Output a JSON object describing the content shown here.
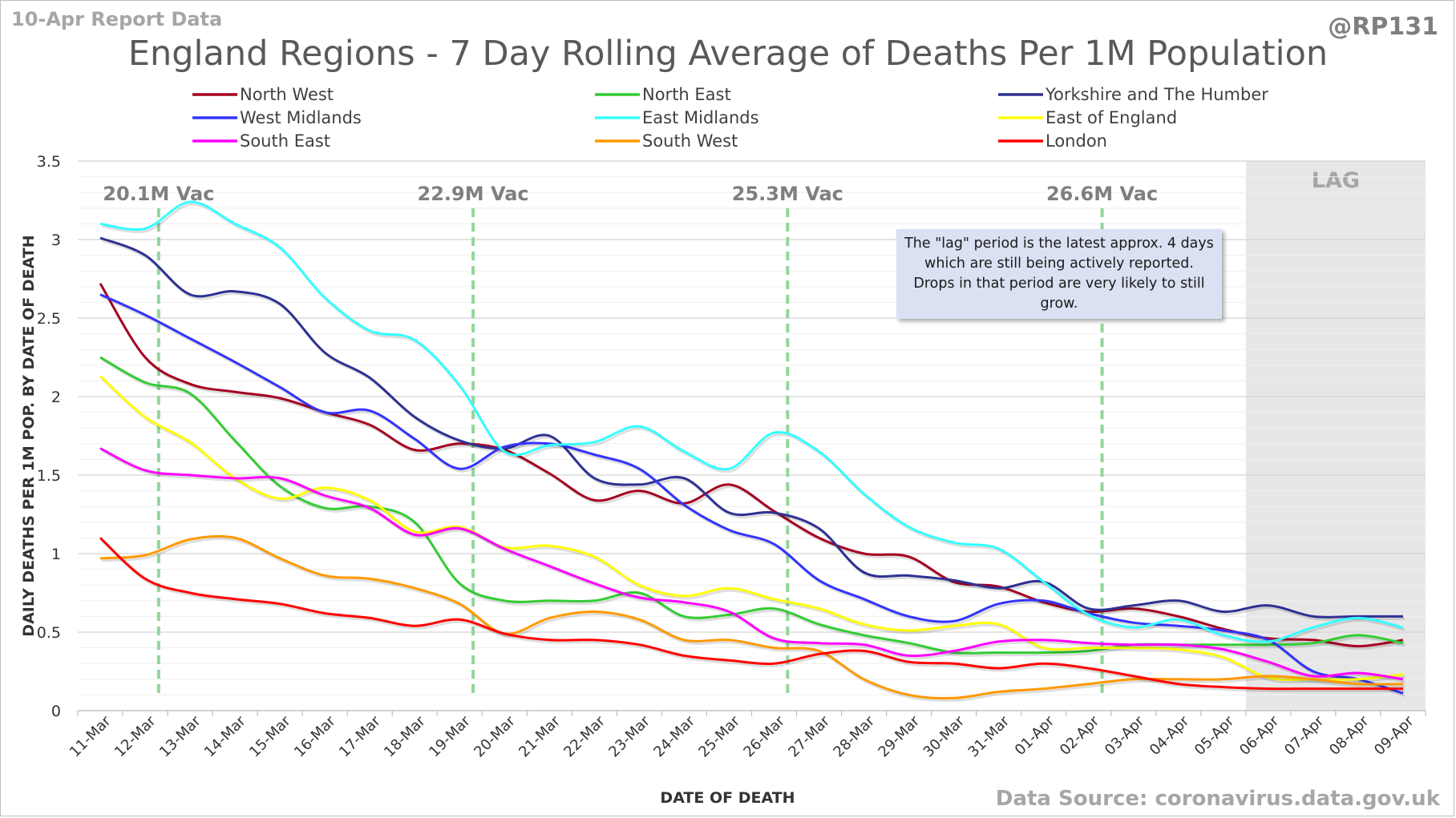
{
  "header": {
    "report_label": "10-Apr Report Data",
    "handle": "@RP131",
    "title": "England Regions - 7 Day Rolling Average of Deaths Per 1M Population",
    "source": "Data Source: coronavirus.data.gov.uk",
    "note": "The \"lag\" period is the latest approx. 4 days which are still being actively reported. Drops in that period are very likely to still grow."
  },
  "chart_data": {
    "type": "line",
    "title": "England Regions - 7 Day Rolling Average of Deaths Per 1M Population",
    "xlabel": "DATE OF DEATH",
    "ylabel": "DAILY DEATHS PER 1M POP. BY DATE OF DEATH",
    "ylim": [
      0,
      3.5
    ],
    "yticks": [
      "0",
      "0.5",
      "1",
      "1.5",
      "2",
      "2.5",
      "3",
      "3.5"
    ],
    "grid": true,
    "legend_position": "top",
    "categories": [
      "11-Mar",
      "12-Mar",
      "13-Mar",
      "14-Mar",
      "15-Mar",
      "16-Mar",
      "17-Mar",
      "18-Mar",
      "19-Mar",
      "20-Mar",
      "21-Mar",
      "22-Mar",
      "23-Mar",
      "24-Mar",
      "25-Mar",
      "26-Mar",
      "27-Mar",
      "28-Mar",
      "29-Mar",
      "30-Mar",
      "31-Mar",
      "01-Apr",
      "02-Apr",
      "03-Apr",
      "04-Apr",
      "05-Apr",
      "06-Apr",
      "07-Apr",
      "08-Apr",
      "09-Apr"
    ],
    "lag": {
      "label": "LAG",
      "from": "06-Apr",
      "to": "09-Apr"
    },
    "vaccination_markers": [
      {
        "label": "20.1M Vac",
        "x": "12-Mar"
      },
      {
        "label": "22.9M Vac",
        "x": "19-Mar"
      },
      {
        "label": "25.3M Vac",
        "x": "26-Mar"
      },
      {
        "label": "26.6M Vac",
        "x": "02-Apr"
      }
    ],
    "series": [
      {
        "name": "North West",
        "color": "#a50021",
        "values": [
          2.72,
          2.25,
          2.08,
          2.03,
          1.99,
          1.9,
          1.82,
          1.66,
          1.7,
          1.66,
          1.51,
          1.34,
          1.4,
          1.32,
          1.44,
          1.27,
          1.1,
          1.0,
          0.98,
          0.82,
          0.79,
          0.69,
          0.63,
          0.65,
          0.6,
          0.52,
          0.46,
          0.45,
          0.41,
          0.45
        ]
      },
      {
        "name": "North East",
        "color": "#33cc33",
        "values": [
          2.25,
          2.09,
          2.02,
          1.72,
          1.43,
          1.29,
          1.3,
          1.2,
          0.81,
          0.7,
          0.7,
          0.7,
          0.75,
          0.6,
          0.61,
          0.65,
          0.55,
          0.48,
          0.43,
          0.37,
          0.37,
          0.37,
          0.38,
          0.42,
          0.42,
          0.42,
          0.42,
          0.43,
          0.48,
          0.43
        ]
      },
      {
        "name": "Yorkshire and The Humber",
        "color": "#2e3192",
        "values": [
          3.01,
          2.9,
          2.65,
          2.67,
          2.59,
          2.28,
          2.12,
          1.87,
          1.72,
          1.67,
          1.75,
          1.48,
          1.44,
          1.48,
          1.26,
          1.26,
          1.16,
          0.88,
          0.86,
          0.83,
          0.78,
          0.82,
          0.65,
          0.67,
          0.7,
          0.63,
          0.67,
          0.6,
          0.6,
          0.6
        ]
      },
      {
        "name": "West Midlands",
        "color": "#3333ff",
        "values": [
          2.65,
          2.52,
          2.37,
          2.22,
          2.06,
          1.9,
          1.91,
          1.73,
          1.54,
          1.68,
          1.7,
          1.63,
          1.54,
          1.31,
          1.15,
          1.06,
          0.83,
          0.71,
          0.6,
          0.57,
          0.68,
          0.7,
          0.62,
          0.56,
          0.54,
          0.51,
          0.45,
          0.25,
          0.2,
          0.11
        ]
      },
      {
        "name": "East Midlands",
        "color": "#33ffff",
        "values": [
          3.1,
          3.07,
          3.24,
          3.1,
          2.95,
          2.63,
          2.42,
          2.36,
          2.07,
          1.65,
          1.69,
          1.71,
          1.81,
          1.65,
          1.54,
          1.77,
          1.65,
          1.38,
          1.17,
          1.07,
          1.03,
          0.82,
          0.61,
          0.53,
          0.58,
          0.48,
          0.44,
          0.53,
          0.59,
          0.53
        ]
      },
      {
        "name": "East of England",
        "color": "#ffff00",
        "values": [
          2.13,
          1.87,
          1.71,
          1.48,
          1.35,
          1.42,
          1.34,
          1.14,
          1.17,
          1.04,
          1.05,
          0.98,
          0.8,
          0.73,
          0.78,
          0.71,
          0.65,
          0.55,
          0.51,
          0.54,
          0.55,
          0.4,
          0.4,
          0.4,
          0.39,
          0.34,
          0.21,
          0.2,
          0.2,
          0.23
        ]
      },
      {
        "name": "South East",
        "color": "#ff00ff",
        "values": [
          1.67,
          1.53,
          1.5,
          1.48,
          1.48,
          1.37,
          1.29,
          1.12,
          1.16,
          1.03,
          0.92,
          0.81,
          0.72,
          0.69,
          0.63,
          0.46,
          0.43,
          0.42,
          0.35,
          0.38,
          0.44,
          0.45,
          0.43,
          0.42,
          0.42,
          0.39,
          0.31,
          0.22,
          0.24,
          0.2
        ]
      },
      {
        "name": "South West",
        "color": "#ff9900",
        "values": [
          0.97,
          0.99,
          1.09,
          1.1,
          0.97,
          0.86,
          0.84,
          0.78,
          0.68,
          0.49,
          0.59,
          0.63,
          0.58,
          0.45,
          0.45,
          0.4,
          0.38,
          0.2,
          0.1,
          0.08,
          0.12,
          0.14,
          0.17,
          0.2,
          0.2,
          0.2,
          0.22,
          0.2,
          0.17,
          0.17
        ]
      },
      {
        "name": "London",
        "color": "#ff0000",
        "values": [
          1.1,
          0.84,
          0.75,
          0.71,
          0.68,
          0.62,
          0.59,
          0.54,
          0.58,
          0.49,
          0.45,
          0.45,
          0.42,
          0.35,
          0.32,
          0.3,
          0.36,
          0.38,
          0.31,
          0.3,
          0.27,
          0.3,
          0.27,
          0.22,
          0.17,
          0.15,
          0.14,
          0.14,
          0.14,
          0.14
        ]
      }
    ]
  }
}
